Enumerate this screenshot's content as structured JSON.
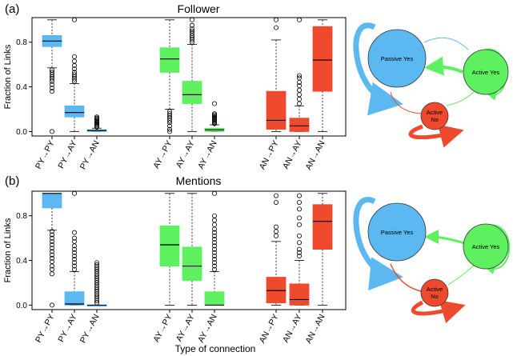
{
  "figure": {
    "xlabel": "Type of connection",
    "colors": {
      "PY": "#5bb8f0",
      "AY": "#5ef05e",
      "AN": "#f04a2e"
    }
  },
  "chart_data": [
    {
      "type": "box",
      "panel_label": "(a)",
      "title": "Follower",
      "ylabel": "Fraction of Links",
      "yticks": [
        "0.0",
        "0.4",
        "0.8"
      ],
      "ylim": [
        -0.04,
        1.02
      ],
      "categories": [
        "PY→PY",
        "PY→AY",
        "PY→AN",
        "AY→PY",
        "AY→AY",
        "AY→AN",
        "AN→PY",
        "AN→AY",
        "AN→AN"
      ],
      "boxes": [
        {
          "group": "PY",
          "min": 0.57,
          "q1": 0.76,
          "median": 0.81,
          "q3": 0.86,
          "max": 1.0,
          "outliers": [
            0.55,
            0.53,
            0.51,
            0.49,
            0.47,
            0.45,
            0.42,
            0.39,
            0.36,
            0.0
          ]
        },
        {
          "group": "PY",
          "min": 0.0,
          "q1": 0.13,
          "median": 0.17,
          "q3": 0.23,
          "max": 0.43,
          "outliers": [
            0.45,
            0.47,
            0.49,
            0.51,
            0.53,
            0.56,
            0.59,
            0.63,
            0.67,
            1.0
          ]
        },
        {
          "group": "PY",
          "min": 0.0,
          "q1": 0.0,
          "median": 0.01,
          "q3": 0.015,
          "max": 0.03,
          "outliers": [
            0.04,
            0.05,
            0.06,
            0.07,
            0.08,
            0.09,
            0.1,
            0.11,
            0.12,
            0.13
          ]
        },
        {
          "group": "AY",
          "min": 0.2,
          "q1": 0.53,
          "median": 0.65,
          "q3": 0.75,
          "max": 1.0,
          "outliers": [
            0.18,
            0.16,
            0.14,
            0.12,
            0.1,
            0.08,
            0.05,
            0.02,
            0.0
          ]
        },
        {
          "group": "AY",
          "min": 0.0,
          "q1": 0.25,
          "median": 0.33,
          "q3": 0.45,
          "max": 0.78,
          "outliers": [
            0.8,
            0.82,
            0.84,
            0.86,
            0.88,
            0.9,
            0.92,
            0.95,
            1.0
          ]
        },
        {
          "group": "AY",
          "min": 0.0,
          "q1": 0.0,
          "median": 0.015,
          "q3": 0.03,
          "max": 0.06,
          "outliers": [
            0.07,
            0.08,
            0.09,
            0.1,
            0.11,
            0.12,
            0.13,
            0.14,
            0.15,
            0.16,
            0.25
          ]
        },
        {
          "group": "AN",
          "min": 0.0,
          "q1": 0.02,
          "median": 0.1,
          "q3": 0.36,
          "max": 0.82,
          "outliers": [
            0.93,
            1.0
          ]
        },
        {
          "group": "AN",
          "min": 0.0,
          "q1": 0.0,
          "median": 0.05,
          "q3": 0.12,
          "max": 0.23,
          "outliers": [
            0.25,
            0.29,
            0.33,
            0.37,
            0.41,
            0.44,
            0.48,
            0.5,
            1.0
          ]
        },
        {
          "group": "AN",
          "min": 0.0,
          "q1": 0.36,
          "median": 0.64,
          "q3": 0.94,
          "max": 1.0,
          "outliers": []
        }
      ]
    },
    {
      "type": "box",
      "panel_label": "(b)",
      "title": "Mentions",
      "ylabel": "Fraction of Links",
      "yticks": [
        "0.0",
        "0.4",
        "0.8"
      ],
      "ylim": [
        -0.04,
        1.02
      ],
      "categories": [
        "PY→PY",
        "PY→AY",
        "PY→AN",
        "AY→PY",
        "AY→AY",
        "AY→AN",
        "AN→PY",
        "AN→AY",
        "AN→AN"
      ],
      "boxes": [
        {
          "group": "PY",
          "min": 0.67,
          "q1": 0.87,
          "median": 1.0,
          "q3": 1.0,
          "max": 1.0,
          "outliers": [
            0.66,
            0.63,
            0.6,
            0.57,
            0.54,
            0.51,
            0.48,
            0.45,
            0.42,
            0.39,
            0.35,
            0.32,
            0.28,
            0.0
          ]
        },
        {
          "group": "PY",
          "min": 0.0,
          "q1": 0.0,
          "median": 0.01,
          "q3": 0.12,
          "max": 0.3,
          "outliers": [
            0.32,
            0.35,
            0.38,
            0.41,
            0.44,
            0.47,
            0.5,
            0.53,
            0.57,
            0.6,
            0.65,
            1.0
          ]
        },
        {
          "group": "PY",
          "min": 0.0,
          "q1": 0.0,
          "median": 0.0,
          "q3": 0.0,
          "max": 0.0,
          "outliers": [
            0.02,
            0.04,
            0.06,
            0.08,
            0.1,
            0.12,
            0.14,
            0.16,
            0.18,
            0.2,
            0.22,
            0.24,
            0.26,
            0.28,
            0.3,
            0.32,
            0.34,
            0.36,
            0.38
          ]
        },
        {
          "group": "AY",
          "min": 0.0,
          "q1": 0.35,
          "median": 0.54,
          "q3": 0.71,
          "max": 1.0,
          "outliers": []
        },
        {
          "group": "AY",
          "min": 0.0,
          "q1": 0.22,
          "median": 0.35,
          "q3": 0.52,
          "max": 1.0,
          "outliers": []
        },
        {
          "group": "AY",
          "min": 0.0,
          "q1": 0.0,
          "median": 0.0,
          "q3": 0.12,
          "max": 0.3,
          "outliers": [
            0.32,
            0.35,
            0.38,
            0.41,
            0.44,
            0.47,
            0.5,
            0.53,
            0.56,
            0.59,
            0.62,
            0.65,
            0.68,
            0.72,
            0.76,
            0.8,
            1.0
          ]
        },
        {
          "group": "AN",
          "min": 0.0,
          "q1": 0.02,
          "median": 0.13,
          "q3": 0.25,
          "max": 0.57,
          "outliers": [
            0.62,
            0.66,
            0.7,
            0.92,
            0.98
          ]
        },
        {
          "group": "AN",
          "min": 0.0,
          "q1": 0.0,
          "median": 0.05,
          "q3": 0.19,
          "max": 0.4,
          "outliers": [
            0.44,
            0.47,
            0.5,
            0.56,
            0.62,
            0.72,
            0.78,
            0.86,
            0.92,
            0.98
          ]
        },
        {
          "group": "AN",
          "min": 0.0,
          "q1": 0.5,
          "median": 0.75,
          "q3": 0.9,
          "max": 1.0,
          "outliers": []
        }
      ]
    }
  ],
  "networks": [
    {
      "panel": "(a)",
      "passive_yes": "Passive Yes",
      "active_yes": "Active Yes",
      "active_no": "Active\nNo"
    },
    {
      "panel": "(b)",
      "passive_yes": "Passive Yes",
      "active_yes": "Active Yes",
      "active_no": "Active\nNo"
    }
  ]
}
